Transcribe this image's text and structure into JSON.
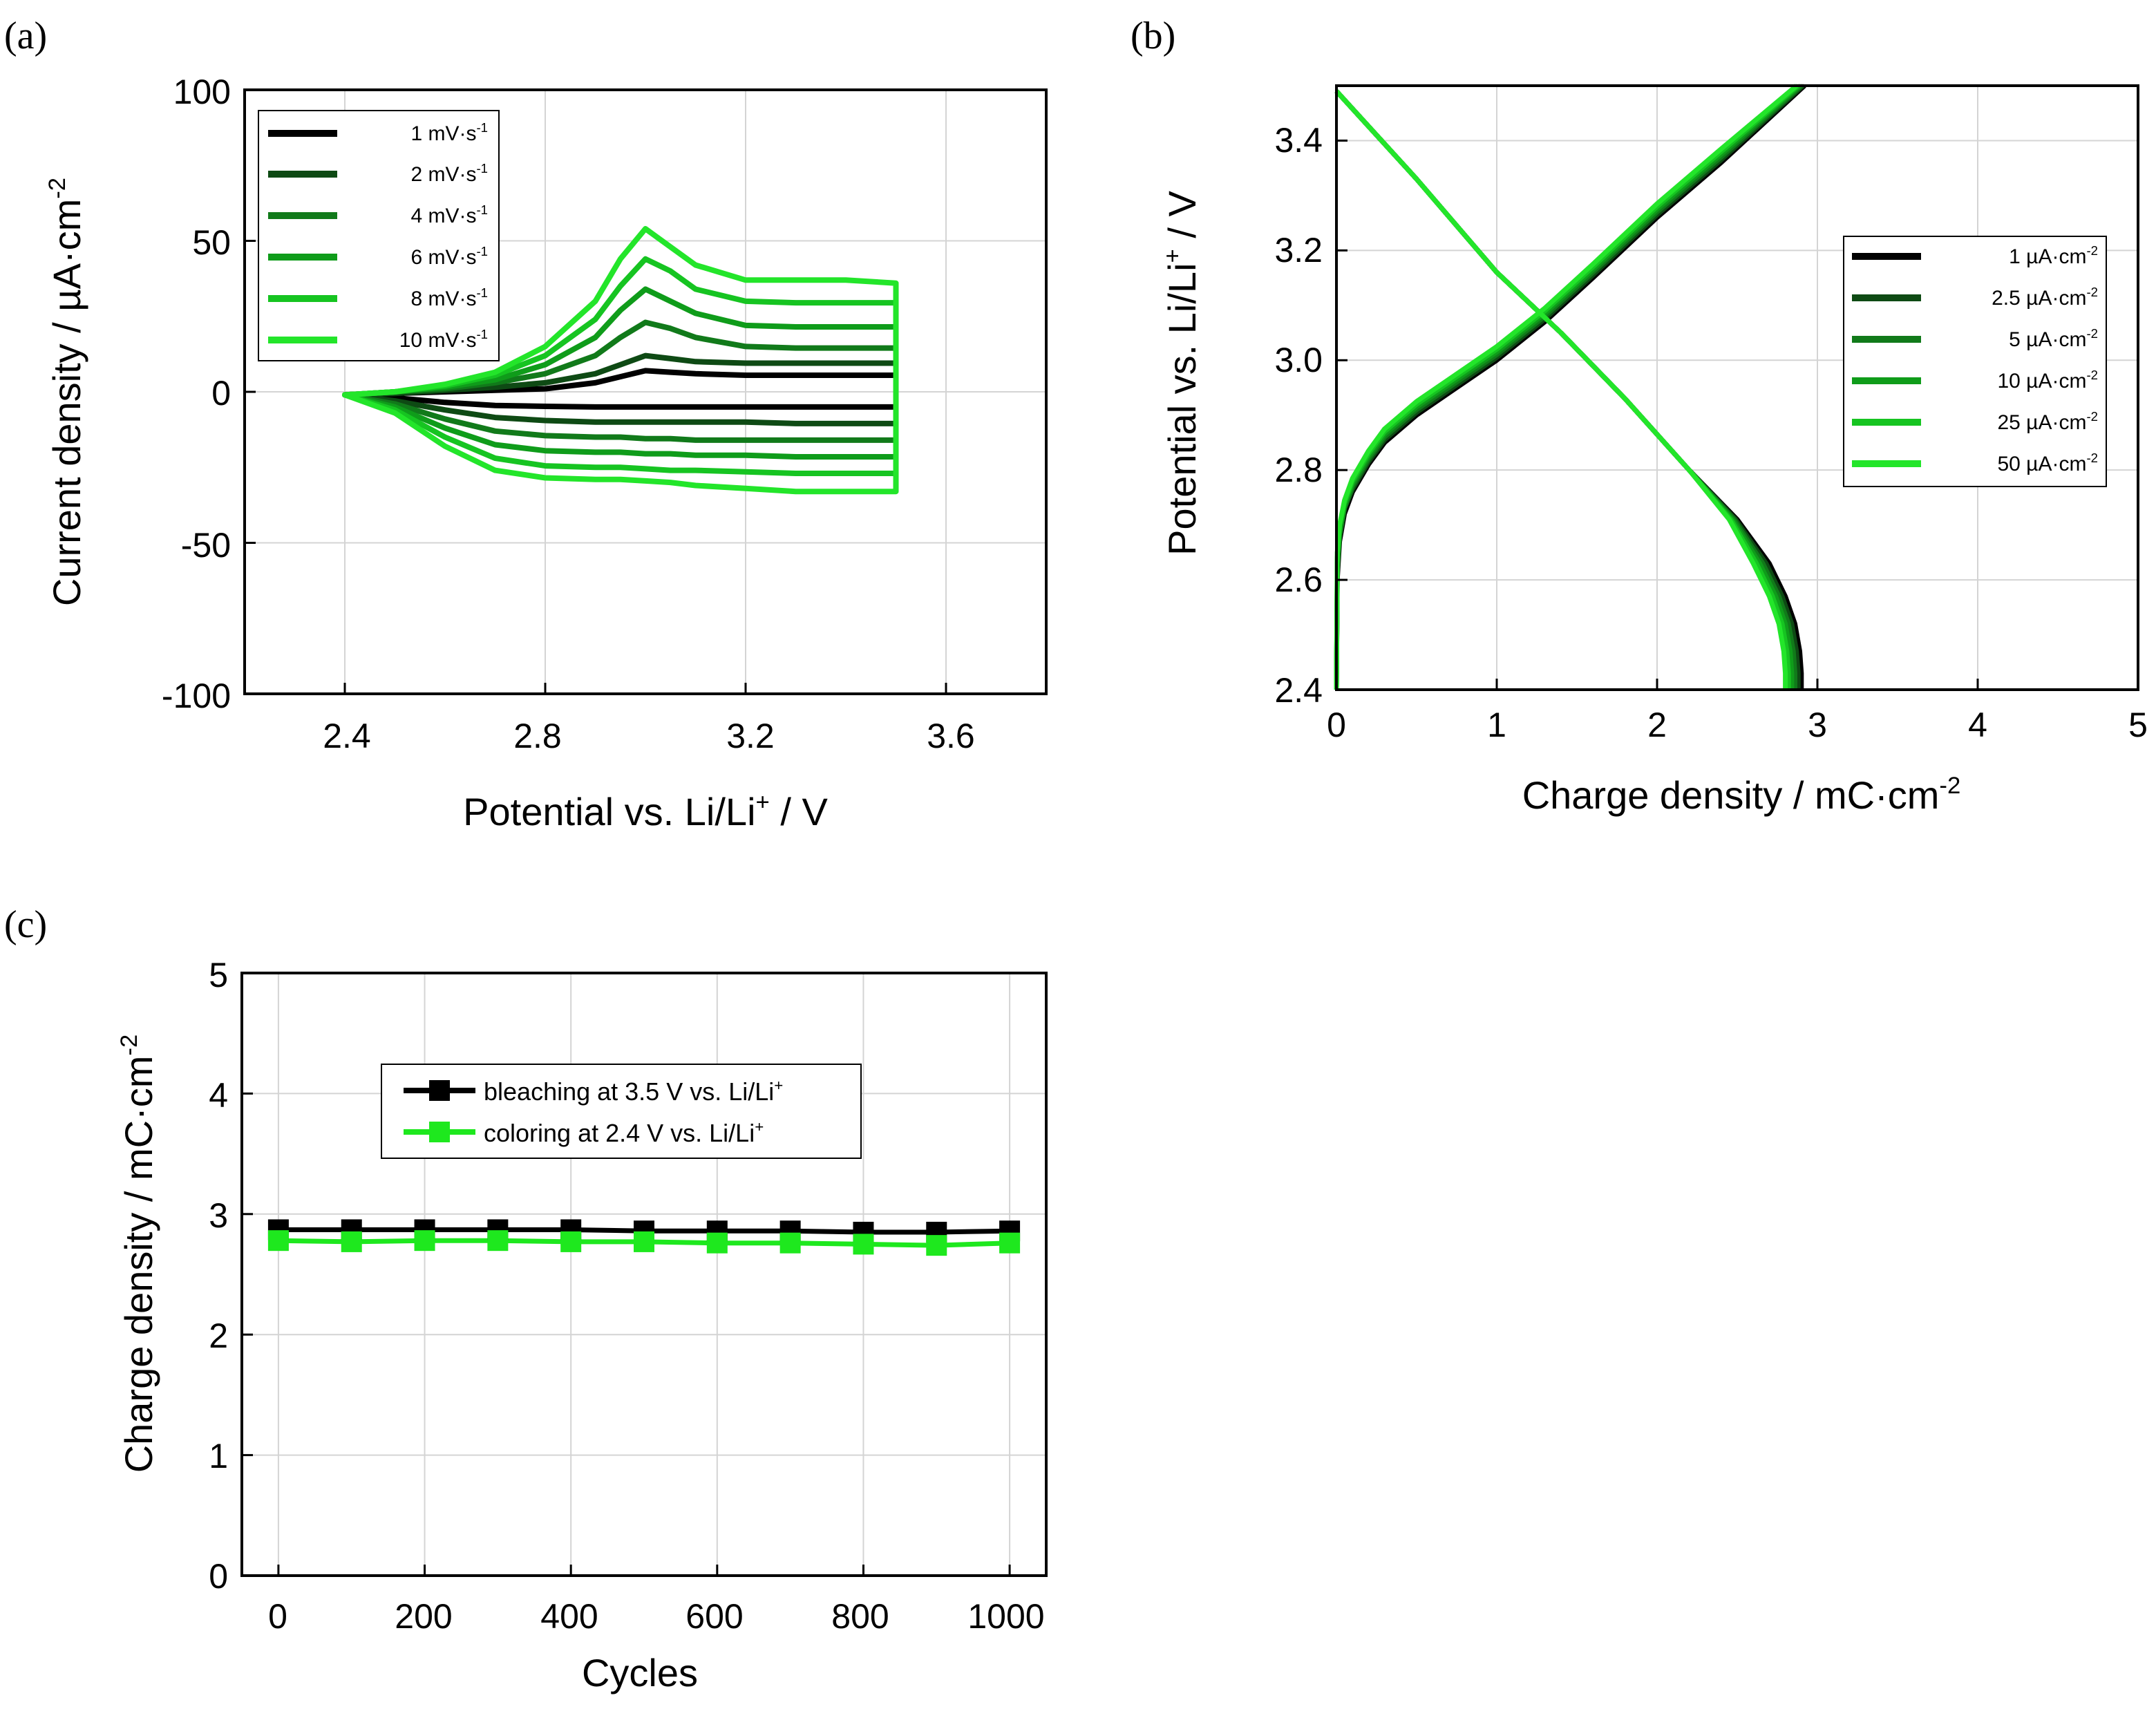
{
  "colors": {
    "axis": "#000000",
    "grid": "#d4d4d4",
    "series_a": [
      "#000000",
      "#0e4a14",
      "#117a1a",
      "#0f9c1a",
      "#16c421",
      "#23e52a"
    ],
    "series_b": [
      "#000000",
      "#0e4a14",
      "#117a1a",
      "#0f9c1a",
      "#16c421",
      "#23e52a"
    ],
    "bleaching": "#000000",
    "coloring": "#1ee81e"
  },
  "chart_data": [
    {
      "panel": "(a)",
      "type": "line",
      "xlabel": {
        "main": "Potential vs. Li/Li",
        "sup": "+",
        "tail": " / V"
      },
      "ylabel": {
        "main": "Current density / µA·cm",
        "sup": "-2",
        "tail": ""
      },
      "xlim": [
        2.2,
        3.8
      ],
      "ylim": [
        -100,
        100
      ],
      "xticks": [
        "2.4",
        "2.8",
        "3.2",
        "3.6"
      ],
      "yticks": [
        "100",
        "50",
        "0",
        "-50",
        "-100"
      ],
      "grid": true,
      "legend_position": "top-left",
      "curve_x": [
        2.4,
        2.5,
        2.6,
        2.7,
        2.8,
        2.9,
        2.95,
        3.0,
        3.05,
        3.1,
        3.2,
        3.3,
        3.4,
        3.5
      ],
      "series": [
        {
          "name": "1 mV·s",
          "sup": "-1",
          "anodic": [
            -1,
            -0.5,
            0,
            0.5,
            1,
            3,
            5,
            7,
            6.5,
            6,
            5.5,
            5.5,
            5.5,
            5.5
          ],
          "cathodic": [
            -1,
            -2,
            -3.5,
            -4.5,
            -4.8,
            -5,
            -5,
            -5,
            -5,
            -5,
            -5,
            -5,
            -5,
            -5
          ]
        },
        {
          "name": "2 mV·s",
          "sup": "-1",
          "anodic": [
            -1,
            -0.5,
            0.5,
            1.5,
            3,
            6,
            9,
            12,
            11,
            10,
            9.5,
            9.5,
            9.5,
            9.5
          ],
          "cathodic": [
            -1,
            -3,
            -6,
            -8.5,
            -9.5,
            -10,
            -10,
            -10,
            -10,
            -10,
            -10,
            -10.5,
            -10.5,
            -10.5
          ]
        },
        {
          "name": "4 mV·s",
          "sup": "-1",
          "anodic": [
            -1,
            0,
            1,
            3,
            6,
            12,
            18,
            23,
            21,
            18,
            15,
            14.5,
            14.5,
            14.5
          ],
          "cathodic": [
            -1,
            -4,
            -9,
            -13,
            -14.5,
            -15,
            -15,
            -15.5,
            -15.5,
            -16,
            -16,
            -16,
            -16,
            -16
          ]
        },
        {
          "name": "6 mV·s",
          "sup": "-1",
          "anodic": [
            -1,
            0,
            1.5,
            4,
            9,
            18,
            27,
            34,
            30,
            26,
            22,
            21.5,
            21.5,
            21.5
          ],
          "cathodic": [
            -1,
            -5,
            -12,
            -17.5,
            -19.5,
            -20,
            -20,
            -20.5,
            -20.5,
            -21,
            -21,
            -21.5,
            -21.5,
            -21.5
          ]
        },
        {
          "name": "8 mV·s",
          "sup": "-1",
          "anodic": [
            -1,
            0,
            2,
            5.5,
            12,
            24,
            35,
            44,
            40,
            34,
            30,
            29.5,
            29.5,
            29.5
          ],
          "cathodic": [
            -1,
            -6,
            -15,
            -22,
            -24.5,
            -25,
            -25,
            -25.5,
            -26,
            -26,
            -26.5,
            -27,
            -27,
            -27
          ]
        },
        {
          "name": "10 mV·s",
          "sup": "-1",
          "anodic": [
            -1,
            0,
            2.5,
            6.5,
            15,
            30,
            44,
            54,
            48,
            42,
            37,
            37,
            37,
            36
          ],
          "cathodic": [
            -1,
            -7,
            -18,
            -26,
            -28.5,
            -29,
            -29,
            -29.5,
            -30,
            -31,
            -32,
            -33,
            -33,
            -33
          ]
        }
      ]
    },
    {
      "panel": "(b)",
      "type": "line",
      "xlabel": {
        "main": "Charge density / mC·cm",
        "sup": "-2",
        "tail": ""
      },
      "ylabel": {
        "main": "Potential vs. Li/Li",
        "sup": "+",
        "tail": " / V"
      },
      "xlim": [
        0,
        5
      ],
      "ylim": [
        2.4,
        3.5
      ],
      "xticks": [
        "0",
        "1",
        "2",
        "3",
        "4",
        "5"
      ],
      "yticks": [
        "3.4",
        "3.2",
        "3.0",
        "2.8",
        "2.6",
        "2.4"
      ],
      "grid": true,
      "legend_position": "right",
      "series": [
        {
          "name": "1 µA·cm",
          "sup": "-2",
          "bleach_x": [
            0,
            0.005,
            0.02,
            0.05,
            0.1,
            0.2,
            0.3,
            0.5,
            0.7,
            1.0,
            1.3,
            1.6,
            2.0,
            2.4,
            2.92
          ],
          "bleach_y": [
            2.4,
            2.6,
            2.67,
            2.72,
            2.76,
            2.81,
            2.85,
            2.9,
            2.94,
            3.0,
            3.07,
            3.15,
            3.26,
            3.36,
            3.5
          ],
          "color_x": [
            0,
            0.5,
            1.0,
            1.4,
            1.8,
            2.2,
            2.5,
            2.7,
            2.8,
            2.86,
            2.89,
            2.9,
            2.9
          ],
          "color_y": [
            3.49,
            3.33,
            3.16,
            3.05,
            2.93,
            2.8,
            2.71,
            2.63,
            2.57,
            2.52,
            2.47,
            2.43,
            2.4
          ]
        },
        {
          "name": "2.5 µA·cm",
          "sup": "-2",
          "bleach_x": [
            0,
            0.005,
            0.02,
            0.05,
            0.1,
            0.2,
            0.3,
            0.5,
            0.7,
            1.0,
            1.3,
            1.6,
            2.0,
            2.4,
            2.91
          ],
          "bleach_y": [
            2.4,
            2.61,
            2.68,
            2.73,
            2.765,
            2.815,
            2.855,
            2.905,
            2.945,
            3.005,
            3.075,
            3.155,
            3.265,
            3.365,
            3.5
          ],
          "color_x": [
            0,
            0.5,
            1.0,
            1.4,
            1.8,
            2.2,
            2.49,
            2.68,
            2.78,
            2.84,
            2.87,
            2.88,
            2.88
          ],
          "color_y": [
            3.49,
            3.33,
            3.16,
            3.05,
            2.93,
            2.8,
            2.71,
            2.63,
            2.57,
            2.52,
            2.47,
            2.43,
            2.4
          ]
        },
        {
          "name": "5 µA·cm",
          "sup": "-2",
          "bleach_x": [
            0,
            0.005,
            0.02,
            0.05,
            0.1,
            0.2,
            0.3,
            0.5,
            0.7,
            1.0,
            1.3,
            1.6,
            2.0,
            2.4,
            2.9
          ],
          "bleach_y": [
            2.4,
            2.62,
            2.68,
            2.73,
            2.77,
            2.82,
            2.86,
            2.91,
            2.95,
            3.01,
            3.08,
            3.16,
            3.27,
            3.37,
            3.5
          ],
          "color_x": [
            0,
            0.5,
            1.0,
            1.4,
            1.8,
            2.2,
            2.48,
            2.66,
            2.76,
            2.82,
            2.85,
            2.86,
            2.86
          ],
          "color_y": [
            3.49,
            3.33,
            3.16,
            3.05,
            2.93,
            2.8,
            2.71,
            2.63,
            2.57,
            2.52,
            2.47,
            2.43,
            2.4
          ]
        },
        {
          "name": "10 µA·cm",
          "sup": "-2",
          "bleach_x": [
            0,
            0.005,
            0.02,
            0.05,
            0.1,
            0.2,
            0.3,
            0.5,
            0.7,
            1.0,
            1.3,
            1.6,
            2.0,
            2.4,
            2.89
          ],
          "bleach_y": [
            2.4,
            2.63,
            2.69,
            2.735,
            2.775,
            2.825,
            2.865,
            2.915,
            2.955,
            3.015,
            3.085,
            3.165,
            3.275,
            3.375,
            3.5
          ],
          "color_x": [
            0,
            0.5,
            1.0,
            1.4,
            1.8,
            2.2,
            2.47,
            2.64,
            2.74,
            2.8,
            2.83,
            2.84,
            2.84
          ],
          "color_y": [
            3.49,
            3.33,
            3.16,
            3.05,
            2.93,
            2.8,
            2.71,
            2.63,
            2.57,
            2.52,
            2.47,
            2.43,
            2.4
          ]
        },
        {
          "name": "25 µA·cm",
          "sup": "-2",
          "bleach_x": [
            0,
            0.005,
            0.02,
            0.05,
            0.1,
            0.2,
            0.3,
            0.5,
            0.7,
            1.0,
            1.3,
            1.6,
            2.0,
            2.4,
            2.88
          ],
          "bleach_y": [
            2.4,
            2.64,
            2.7,
            2.74,
            2.78,
            2.83,
            2.87,
            2.92,
            2.96,
            3.02,
            3.09,
            3.17,
            3.28,
            3.38,
            3.5
          ],
          "color_x": [
            0,
            0.5,
            1.0,
            1.4,
            1.8,
            2.2,
            2.46,
            2.62,
            2.72,
            2.78,
            2.81,
            2.82,
            2.82
          ],
          "color_y": [
            3.49,
            3.33,
            3.16,
            3.05,
            2.93,
            2.8,
            2.71,
            2.63,
            2.57,
            2.52,
            2.47,
            2.43,
            2.4
          ]
        },
        {
          "name": "50 µA·cm",
          "sup": "-2",
          "bleach_x": [
            0,
            0.005,
            0.02,
            0.05,
            0.1,
            0.2,
            0.3,
            0.5,
            0.7,
            1.0,
            1.3,
            1.6,
            2.0,
            2.4,
            2.87
          ],
          "bleach_y": [
            2.4,
            2.65,
            2.7,
            2.745,
            2.785,
            2.835,
            2.875,
            2.925,
            2.965,
            3.025,
            3.095,
            3.175,
            3.285,
            3.385,
            3.5
          ],
          "color_x": [
            0,
            0.5,
            1.0,
            1.4,
            1.8,
            2.2,
            2.45,
            2.6,
            2.7,
            2.76,
            2.79,
            2.8,
            2.8
          ],
          "color_y": [
            3.49,
            3.33,
            3.16,
            3.05,
            2.93,
            2.8,
            2.71,
            2.63,
            2.57,
            2.52,
            2.47,
            2.43,
            2.4
          ]
        }
      ]
    },
    {
      "panel": "(c)",
      "type": "line",
      "xlabel": {
        "main": "Cycles",
        "sup": "",
        "tail": ""
      },
      "ylabel": {
        "main": "Charge density / mC·cm",
        "sup": "-2",
        "tail": ""
      },
      "xlim": [
        -50,
        1050
      ],
      "ylim": [
        0,
        5
      ],
      "xticks": [
        "0",
        "200",
        "400",
        "600",
        "800",
        "1000"
      ],
      "yticks": [
        "5",
        "4",
        "3",
        "2",
        "1",
        "0"
      ],
      "grid": true,
      "legend_position": "top-center",
      "x": [
        0,
        100,
        200,
        300,
        400,
        500,
        600,
        700,
        800,
        900,
        1000
      ],
      "series": [
        {
          "name": "bleaching at 3.5 V vs. Li/Li",
          "sup": "+",
          "marker": "square",
          "values": [
            2.87,
            2.87,
            2.87,
            2.87,
            2.87,
            2.86,
            2.86,
            2.86,
            2.85,
            2.85,
            2.86
          ]
        },
        {
          "name": "coloring at 2.4 V vs. Li/Li",
          "sup": "+",
          "marker": "square",
          "values": [
            2.78,
            2.77,
            2.78,
            2.78,
            2.77,
            2.77,
            2.76,
            2.76,
            2.75,
            2.74,
            2.76
          ]
        }
      ]
    }
  ]
}
